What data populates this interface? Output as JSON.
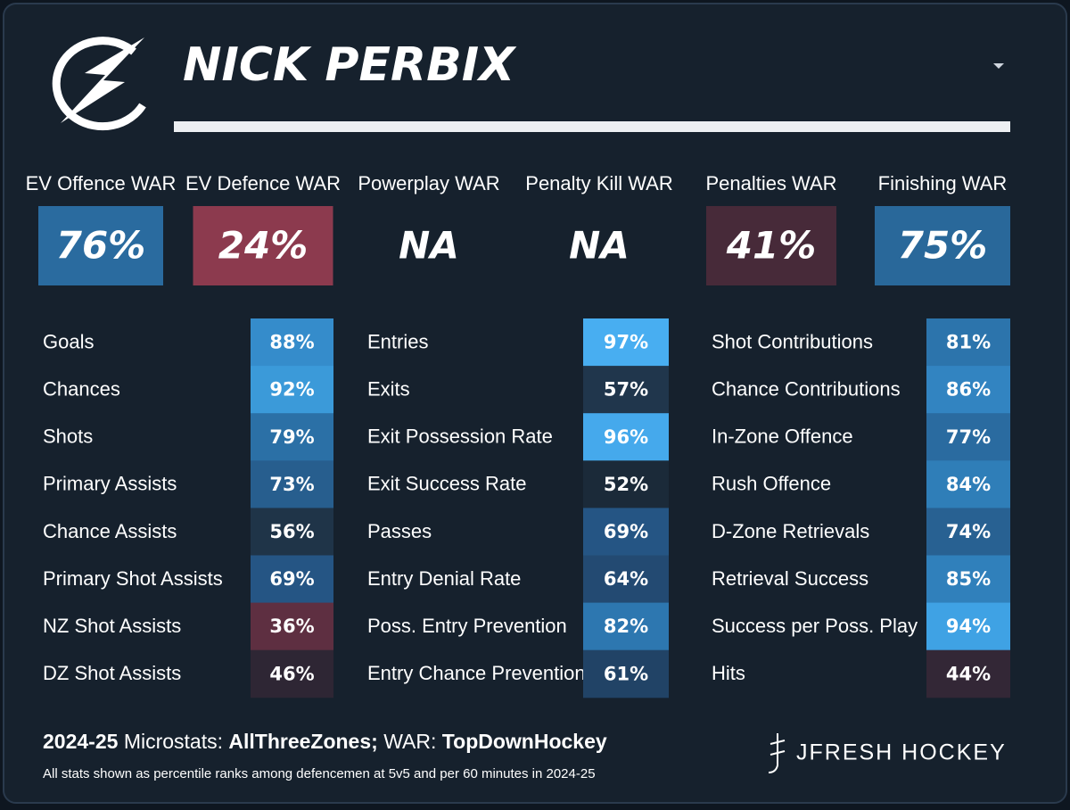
{
  "header": {
    "title": "NICK PERBIX"
  },
  "war": [
    {
      "label": "EV Offence WAR",
      "value": "76%",
      "color": "#2a6b9f"
    },
    {
      "label": "EV Defence WAR",
      "value": "24%",
      "color": "#8c3a4e"
    },
    {
      "label": "Powerplay WAR",
      "value": "NA",
      "color": null
    },
    {
      "label": "Penalty Kill WAR",
      "value": "NA",
      "color": null
    },
    {
      "label": "Penalties WAR",
      "value": "41%",
      "color": "#472a39"
    },
    {
      "label": "Finishing WAR",
      "value": "75%",
      "color": "#29689a"
    }
  ],
  "microstats": [
    [
      {
        "label": "Goals",
        "value": "88%",
        "color": "#358ccb"
      },
      {
        "label": "Chances",
        "value": "92%",
        "color": "#3b9ad9"
      },
      {
        "label": "Shots",
        "value": "79%",
        "color": "#2b70a6"
      },
      {
        "label": "Primary Assists",
        "value": "73%",
        "color": "#275e8e"
      },
      {
        "label": "Chance Assists",
        "value": "56%",
        "color": "#1f3448"
      },
      {
        "label": "Primary Shot Assists",
        "value": "69%",
        "color": "#255584"
      },
      {
        "label": "NZ Shot Assists",
        "value": "36%",
        "color": "#5e2f41"
      },
      {
        "label": "DZ Shot Assists",
        "value": "46%",
        "color": "#2e2634"
      }
    ],
    [
      {
        "label": "Entries",
        "value": "97%",
        "color": "#48aef1"
      },
      {
        "label": "Exits",
        "value": "57%",
        "color": "#20364c"
      },
      {
        "label": "Exit Possession Rate",
        "value": "96%",
        "color": "#45a9ec"
      },
      {
        "label": "Exit Success Rate",
        "value": "52%",
        "color": "#1b2a39"
      },
      {
        "label": "Passes",
        "value": "69%",
        "color": "#255584"
      },
      {
        "label": "Entry Denial Rate",
        "value": "64%",
        "color": "#234a72"
      },
      {
        "label": "Poss. Entry Prevention",
        "value": "82%",
        "color": "#2d77b0"
      },
      {
        "label": "Entry Chance Prevention",
        "value": "61%",
        "color": "#214366"
      }
    ],
    [
      {
        "label": "Shot Contributions",
        "value": "81%",
        "color": "#2c74ac"
      },
      {
        "label": "Chance Contributions",
        "value": "86%",
        "color": "#3284c1"
      },
      {
        "label": "In-Zone Offence",
        "value": "77%",
        "color": "#2a6ba0"
      },
      {
        "label": "Rush Offence",
        "value": "84%",
        "color": "#2f7eb8"
      },
      {
        "label": "D-Zone Retrievals",
        "value": "74%",
        "color": "#286192"
      },
      {
        "label": "Retrieval Success",
        "value": "85%",
        "color": "#3080bb"
      },
      {
        "label": "Success per Poss. Play",
        "value": "94%",
        "color": "#3fa2e4"
      },
      {
        "label": "Hits",
        "value": "44%",
        "color": "#332736"
      }
    ]
  ],
  "footer": {
    "season": "2024-25",
    "microstats_text": "Microstats:",
    "microstats_source": "AllThreeZones;",
    "war_text": "WAR:",
    "war_source": "TopDownHockey",
    "note": "All stats shown as percentile ranks among defencemen at 5v5 and per 60 minutes in 2024-25",
    "brand": "JFRESH HOCKEY"
  }
}
